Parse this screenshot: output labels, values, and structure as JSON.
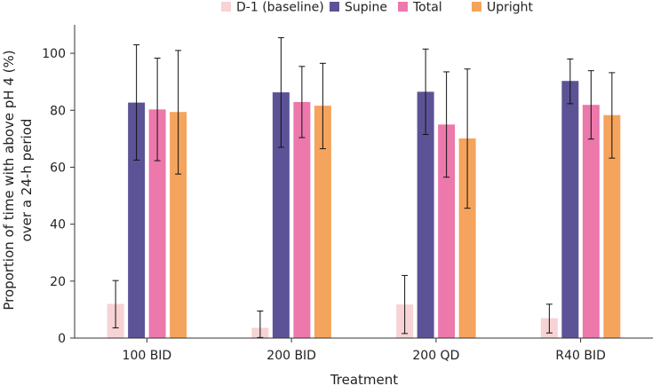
{
  "chart_data": {
    "type": "bar",
    "title": "",
    "xlabel": "Treatment",
    "ylabel_lines": [
      "Proportion of time with above pH 4 (%)",
      "over a 24-h period"
    ],
    "categories": [
      "100 BID",
      "200 BID",
      "200 QD",
      "R40 BID"
    ],
    "ylim": [
      0,
      110
    ],
    "yticks": [
      0,
      20,
      40,
      60,
      80,
      100
    ],
    "legend_position": "top-center",
    "error_bars": true,
    "series": [
      {
        "name": "D-1 (baseline)",
        "color": "#f7d3d5",
        "values": [
          12.0,
          3.6,
          11.8,
          7.0
        ],
        "err_low": [
          3.6,
          0.2,
          1.6,
          1.8
        ],
        "err_high": [
          20.2,
          9.5,
          22.0,
          11.9
        ]
      },
      {
        "name": "Supine",
        "color": "#5c5396",
        "values": [
          82.7,
          86.3,
          86.5,
          90.3
        ],
        "err_low": [
          62.5,
          67.0,
          71.5,
          82.3
        ],
        "err_high": [
          103.0,
          105.5,
          101.5,
          98.0
        ]
      },
      {
        "name": "Total",
        "color": "#ec78ac",
        "values": [
          80.3,
          82.9,
          75.0,
          81.9
        ],
        "err_low": [
          62.3,
          70.4,
          56.5,
          69.9
        ],
        "err_high": [
          98.3,
          95.4,
          93.5,
          93.9
        ]
      },
      {
        "name": "Upright",
        "color": "#f4a45c",
        "values": [
          79.4,
          81.6,
          70.1,
          78.3
        ],
        "err_low": [
          57.6,
          66.5,
          45.6,
          63.2
        ],
        "err_high": [
          101.0,
          96.5,
          94.5,
          93.2
        ]
      }
    ]
  }
}
